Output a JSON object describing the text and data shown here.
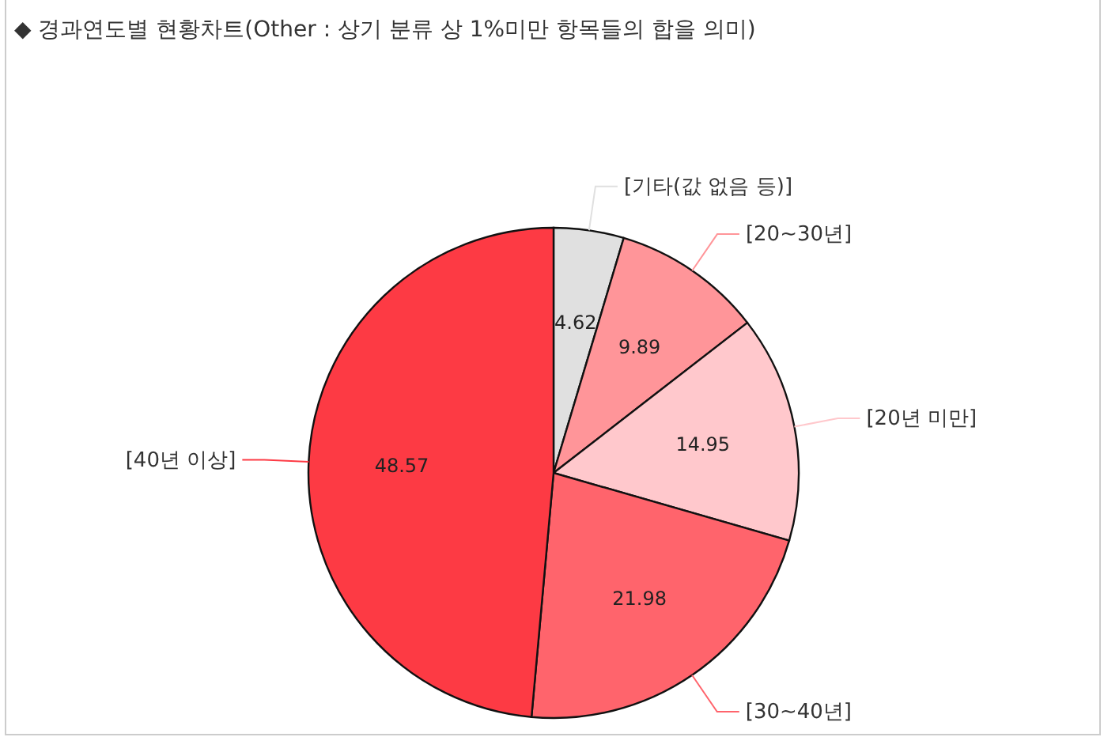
{
  "chart_data": {
    "type": "pie",
    "title": "◆ 경과연도별 현황차트(Other : 상기 분류 상 1%미만 항목들의 합을 의미)",
    "categories": [
      "[기타(값 없음 등)]",
      "[20~30년]",
      "[20년 미만]",
      "[30~40년]",
      "[40년 이상]"
    ],
    "values": [
      4.62,
      9.89,
      14.95,
      21.98,
      48.57
    ],
    "colors": [
      "#e0e0e0",
      "#ff9599",
      "#ffc8cc",
      "#ff646c",
      "#fd3a44"
    ],
    "data_labels": true,
    "legend": false
  }
}
